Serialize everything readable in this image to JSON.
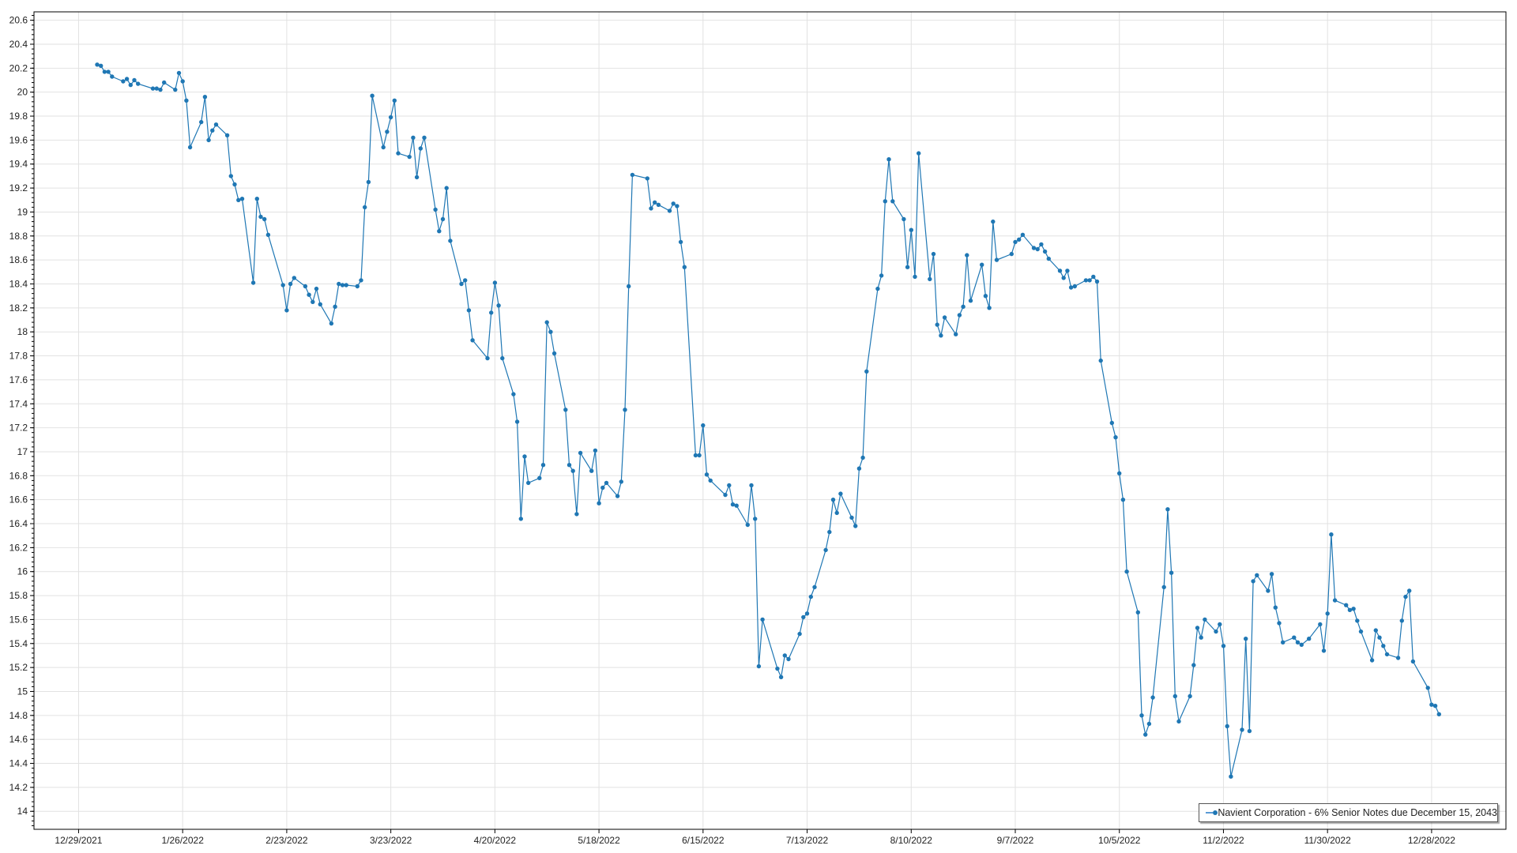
{
  "chart_data": {
    "type": "line",
    "title": "",
    "xlabel": "",
    "ylabel": "",
    "x_type": "date",
    "xlim": [
      "2021-12-17",
      "2023-01-17"
    ],
    "ylim": [
      13.85,
      20.67
    ],
    "grid": true,
    "legend_position": "bottom-right",
    "x_ticks": [
      "12/29/2021",
      "1/26/2022",
      "2/23/2022",
      "3/23/2022",
      "4/20/2022",
      "5/18/2022",
      "6/15/2022",
      "7/13/2022",
      "8/10/2022",
      "9/7/2022",
      "10/5/2022",
      "11/2/2022",
      "11/30/2022",
      "12/28/2022"
    ],
    "y_ticks": [
      "14",
      "14.2",
      "14.4",
      "14.6",
      "14.8",
      "15",
      "15.2",
      "15.4",
      "15.6",
      "15.8",
      "16",
      "16.2",
      "16.4",
      "16.6",
      "16.8",
      "17",
      "17.2",
      "17.4",
      "17.6",
      "17.8",
      "18",
      "18.2",
      "18.4",
      "18.6",
      "18.8",
      "19",
      "19.2",
      "19.4",
      "19.6",
      "19.8",
      "20",
      "20.2",
      "20.4",
      "20.6"
    ],
    "series": [
      {
        "name": "Navient Corporation - 6% Senior Notes due December 15, 2043",
        "color": "#1f77b4",
        "marker": "circle",
        "points": [
          [
            "2022-01-03",
            20.23
          ],
          [
            "2022-01-04",
            20.22
          ],
          [
            "2022-01-05",
            20.17
          ],
          [
            "2022-01-06",
            20.17
          ],
          [
            "2022-01-07",
            20.13
          ],
          [
            "2022-01-10",
            20.09
          ],
          [
            "2022-01-11",
            20.11
          ],
          [
            "2022-01-12",
            20.06
          ],
          [
            "2022-01-13",
            20.1
          ],
          [
            "2022-01-14",
            20.07
          ],
          [
            "2022-01-18",
            20.03
          ],
          [
            "2022-01-19",
            20.03
          ],
          [
            "2022-01-20",
            20.02
          ],
          [
            "2022-01-21",
            20.08
          ],
          [
            "2022-01-24",
            20.02
          ],
          [
            "2022-01-25",
            20.16
          ],
          [
            "2022-01-26",
            20.09
          ],
          [
            "2022-01-27",
            19.93
          ],
          [
            "2022-01-28",
            19.54
          ],
          [
            "2022-01-31",
            19.75
          ],
          [
            "2022-02-01",
            19.96
          ],
          [
            "2022-02-02",
            19.6
          ],
          [
            "2022-02-03",
            19.68
          ],
          [
            "2022-02-04",
            19.73
          ],
          [
            "2022-02-07",
            19.64
          ],
          [
            "2022-02-08",
            19.3
          ],
          [
            "2022-02-09",
            19.23
          ],
          [
            "2022-02-10",
            19.1
          ],
          [
            "2022-02-11",
            19.11
          ],
          [
            "2022-02-14",
            18.41
          ],
          [
            "2022-02-15",
            19.11
          ],
          [
            "2022-02-16",
            18.96
          ],
          [
            "2022-02-17",
            18.94
          ],
          [
            "2022-02-18",
            18.81
          ],
          [
            "2022-02-22",
            18.39
          ],
          [
            "2022-02-23",
            18.18
          ],
          [
            "2022-02-24",
            18.4
          ],
          [
            "2022-02-25",
            18.45
          ],
          [
            "2022-02-28",
            18.38
          ],
          [
            "2022-03-01",
            18.31
          ],
          [
            "2022-03-02",
            18.25
          ],
          [
            "2022-03-03",
            18.36
          ],
          [
            "2022-03-04",
            18.23
          ],
          [
            "2022-03-07",
            18.07
          ],
          [
            "2022-03-08",
            18.21
          ],
          [
            "2022-03-09",
            18.4
          ],
          [
            "2022-03-10",
            18.39
          ],
          [
            "2022-03-11",
            18.39
          ],
          [
            "2022-03-14",
            18.38
          ],
          [
            "2022-03-15",
            18.43
          ],
          [
            "2022-03-16",
            19.04
          ],
          [
            "2022-03-17",
            19.25
          ],
          [
            "2022-03-18",
            19.97
          ],
          [
            "2022-03-21",
            19.54
          ],
          [
            "2022-03-22",
            19.67
          ],
          [
            "2022-03-23",
            19.79
          ],
          [
            "2022-03-24",
            19.93
          ],
          [
            "2022-03-25",
            19.49
          ],
          [
            "2022-03-28",
            19.46
          ],
          [
            "2022-03-29",
            19.62
          ],
          [
            "2022-03-30",
            19.29
          ],
          [
            "2022-03-31",
            19.53
          ],
          [
            "2022-04-01",
            19.62
          ],
          [
            "2022-04-04",
            19.02
          ],
          [
            "2022-04-05",
            18.84
          ],
          [
            "2022-04-06",
            18.94
          ],
          [
            "2022-04-07",
            19.2
          ],
          [
            "2022-04-08",
            18.76
          ],
          [
            "2022-04-11",
            18.4
          ],
          [
            "2022-04-12",
            18.43
          ],
          [
            "2022-04-13",
            18.18
          ],
          [
            "2022-04-14",
            17.93
          ],
          [
            "2022-04-18",
            17.78
          ],
          [
            "2022-04-19",
            18.16
          ],
          [
            "2022-04-20",
            18.41
          ],
          [
            "2022-04-21",
            18.22
          ],
          [
            "2022-04-22",
            17.78
          ],
          [
            "2022-04-25",
            17.48
          ],
          [
            "2022-04-26",
            17.25
          ],
          [
            "2022-04-27",
            16.44
          ],
          [
            "2022-04-28",
            16.96
          ],
          [
            "2022-04-29",
            16.74
          ],
          [
            "2022-05-02",
            16.78
          ],
          [
            "2022-05-03",
            16.89
          ],
          [
            "2022-05-04",
            18.08
          ],
          [
            "2022-05-05",
            18.0
          ],
          [
            "2022-05-06",
            17.82
          ],
          [
            "2022-05-09",
            17.35
          ],
          [
            "2022-05-10",
            16.89
          ],
          [
            "2022-05-11",
            16.84
          ],
          [
            "2022-05-12",
            16.48
          ],
          [
            "2022-05-13",
            16.99
          ],
          [
            "2022-05-16",
            16.84
          ],
          [
            "2022-05-17",
            17.01
          ],
          [
            "2022-05-18",
            16.57
          ],
          [
            "2022-05-19",
            16.7
          ],
          [
            "2022-05-20",
            16.74
          ],
          [
            "2022-05-23",
            16.63
          ],
          [
            "2022-05-24",
            16.75
          ],
          [
            "2022-05-25",
            17.35
          ],
          [
            "2022-05-26",
            18.38
          ],
          [
            "2022-05-27",
            19.31
          ],
          [
            "2022-05-31",
            19.28
          ],
          [
            "2022-06-01",
            19.03
          ],
          [
            "2022-06-02",
            19.08
          ],
          [
            "2022-06-03",
            19.06
          ],
          [
            "2022-06-06",
            19.01
          ],
          [
            "2022-06-07",
            19.07
          ],
          [
            "2022-06-08",
            19.05
          ],
          [
            "2022-06-09",
            18.75
          ],
          [
            "2022-06-10",
            18.54
          ],
          [
            "2022-06-13",
            16.97
          ],
          [
            "2022-06-14",
            16.97
          ],
          [
            "2022-06-15",
            17.22
          ],
          [
            "2022-06-16",
            16.81
          ],
          [
            "2022-06-17",
            16.76
          ],
          [
            "2022-06-21",
            16.64
          ],
          [
            "2022-06-22",
            16.72
          ],
          [
            "2022-06-23",
            16.56
          ],
          [
            "2022-06-24",
            16.55
          ],
          [
            "2022-06-27",
            16.39
          ],
          [
            "2022-06-28",
            16.72
          ],
          [
            "2022-06-29",
            16.44
          ],
          [
            "2022-06-30",
            15.21
          ],
          [
            "2022-07-01",
            15.6
          ],
          [
            "2022-07-05",
            15.19
          ],
          [
            "2022-07-06",
            15.12
          ],
          [
            "2022-07-07",
            15.3
          ],
          [
            "2022-07-08",
            15.27
          ],
          [
            "2022-07-11",
            15.48
          ],
          [
            "2022-07-12",
            15.62
          ],
          [
            "2022-07-13",
            15.65
          ],
          [
            "2022-07-14",
            15.79
          ],
          [
            "2022-07-15",
            15.87
          ],
          [
            "2022-07-18",
            16.18
          ],
          [
            "2022-07-19",
            16.33
          ],
          [
            "2022-07-20",
            16.6
          ],
          [
            "2022-07-21",
            16.49
          ],
          [
            "2022-07-22",
            16.65
          ],
          [
            "2022-07-25",
            16.45
          ],
          [
            "2022-07-26",
            16.38
          ],
          [
            "2022-07-27",
            16.86
          ],
          [
            "2022-07-28",
            16.95
          ],
          [
            "2022-07-29",
            17.67
          ],
          [
            "2022-08-01",
            18.36
          ],
          [
            "2022-08-02",
            18.47
          ],
          [
            "2022-08-03",
            19.09
          ],
          [
            "2022-08-04",
            19.44
          ],
          [
            "2022-08-05",
            19.09
          ],
          [
            "2022-08-08",
            18.94
          ],
          [
            "2022-08-09",
            18.54
          ],
          [
            "2022-08-10",
            18.85
          ],
          [
            "2022-08-11",
            18.46
          ],
          [
            "2022-08-12",
            19.49
          ],
          [
            "2022-08-15",
            18.44
          ],
          [
            "2022-08-16",
            18.65
          ],
          [
            "2022-08-17",
            18.06
          ],
          [
            "2022-08-18",
            17.97
          ],
          [
            "2022-08-19",
            18.12
          ],
          [
            "2022-08-22",
            17.98
          ],
          [
            "2022-08-23",
            18.14
          ],
          [
            "2022-08-24",
            18.21
          ],
          [
            "2022-08-25",
            18.64
          ],
          [
            "2022-08-26",
            18.26
          ],
          [
            "2022-08-29",
            18.56
          ],
          [
            "2022-08-30",
            18.3
          ],
          [
            "2022-08-31",
            18.2
          ],
          [
            "2022-09-01",
            18.92
          ],
          [
            "2022-09-02",
            18.6
          ],
          [
            "2022-09-06",
            18.65
          ],
          [
            "2022-09-07",
            18.75
          ],
          [
            "2022-09-08",
            18.77
          ],
          [
            "2022-09-09",
            18.81
          ],
          [
            "2022-09-12",
            18.7
          ],
          [
            "2022-09-13",
            18.69
          ],
          [
            "2022-09-14",
            18.73
          ],
          [
            "2022-09-15",
            18.67
          ],
          [
            "2022-09-16",
            18.61
          ],
          [
            "2022-09-19",
            18.51
          ],
          [
            "2022-09-20",
            18.45
          ],
          [
            "2022-09-21",
            18.51
          ],
          [
            "2022-09-22",
            18.37
          ],
          [
            "2022-09-23",
            18.38
          ],
          [
            "2022-09-26",
            18.43
          ],
          [
            "2022-09-27",
            18.43
          ],
          [
            "2022-09-28",
            18.46
          ],
          [
            "2022-09-29",
            18.42
          ],
          [
            "2022-09-30",
            17.76
          ],
          [
            "2022-10-03",
            17.24
          ],
          [
            "2022-10-04",
            17.12
          ],
          [
            "2022-10-05",
            16.82
          ],
          [
            "2022-10-06",
            16.6
          ],
          [
            "2022-10-07",
            16.0
          ],
          [
            "2022-10-10",
            15.66
          ],
          [
            "2022-10-11",
            14.8
          ],
          [
            "2022-10-12",
            14.64
          ],
          [
            "2022-10-13",
            14.73
          ],
          [
            "2022-10-14",
            14.95
          ],
          [
            "2022-10-17",
            15.87
          ],
          [
            "2022-10-18",
            16.52
          ],
          [
            "2022-10-19",
            15.99
          ],
          [
            "2022-10-20",
            14.96
          ],
          [
            "2022-10-21",
            14.75
          ],
          [
            "2022-10-24",
            14.96
          ],
          [
            "2022-10-25",
            15.22
          ],
          [
            "2022-10-26",
            15.53
          ],
          [
            "2022-10-27",
            15.45
          ],
          [
            "2022-10-28",
            15.6
          ],
          [
            "2022-10-31",
            15.5
          ],
          [
            "2022-11-01",
            15.56
          ],
          [
            "2022-11-02",
            15.38
          ],
          [
            "2022-11-03",
            14.71
          ],
          [
            "2022-11-04",
            14.29
          ],
          [
            "2022-11-07",
            14.68
          ],
          [
            "2022-11-08",
            15.44
          ],
          [
            "2022-11-09",
            14.67
          ],
          [
            "2022-11-10",
            15.92
          ],
          [
            "2022-11-11",
            15.97
          ],
          [
            "2022-11-14",
            15.84
          ],
          [
            "2022-11-15",
            15.98
          ],
          [
            "2022-11-16",
            15.7
          ],
          [
            "2022-11-17",
            15.57
          ],
          [
            "2022-11-18",
            15.41
          ],
          [
            "2022-11-21",
            15.45
          ],
          [
            "2022-11-22",
            15.41
          ],
          [
            "2022-11-23",
            15.39
          ],
          [
            "2022-11-25",
            15.44
          ],
          [
            "2022-11-28",
            15.56
          ],
          [
            "2022-11-29",
            15.34
          ],
          [
            "2022-11-30",
            15.65
          ],
          [
            "2022-12-01",
            16.31
          ],
          [
            "2022-12-02",
            15.76
          ],
          [
            "2022-12-05",
            15.72
          ],
          [
            "2022-12-06",
            15.68
          ],
          [
            "2022-12-07",
            15.69
          ],
          [
            "2022-12-08",
            15.59
          ],
          [
            "2022-12-09",
            15.5
          ],
          [
            "2022-12-12",
            15.26
          ],
          [
            "2022-12-13",
            15.51
          ],
          [
            "2022-12-14",
            15.45
          ],
          [
            "2022-12-15",
            15.38
          ],
          [
            "2022-12-16",
            15.31
          ],
          [
            "2022-12-19",
            15.28
          ],
          [
            "2022-12-20",
            15.59
          ],
          [
            "2022-12-21",
            15.79
          ],
          [
            "2022-12-22",
            15.84
          ],
          [
            "2022-12-23",
            15.25
          ],
          [
            "2022-12-27",
            15.03
          ],
          [
            "2022-12-28",
            14.89
          ],
          [
            "2022-12-29",
            14.88
          ],
          [
            "2022-12-30",
            14.81
          ]
        ]
      }
    ]
  },
  "legend": {
    "label": "Navient Corporation - 6% Senior Notes due December 15, 2043"
  }
}
